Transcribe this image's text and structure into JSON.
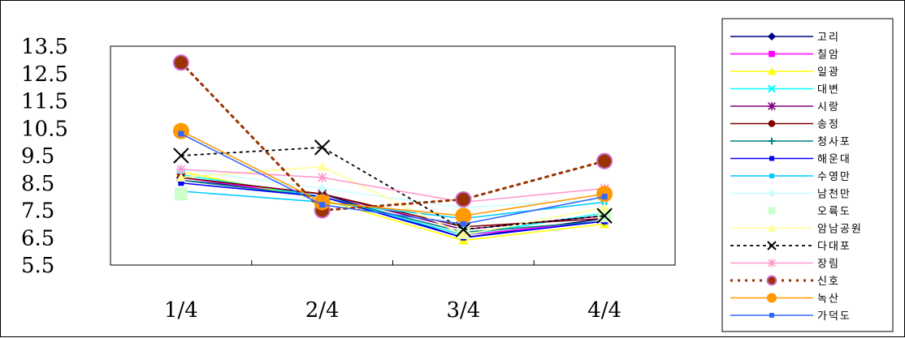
{
  "chart_data": {
    "type": "line",
    "title": "",
    "xlabel": "",
    "ylabel": "",
    "categories": [
      "1/4",
      "2/4",
      "3/4",
      "4/4"
    ],
    "ylim": [
      5.5,
      13.5
    ],
    "y_ticks": [
      "13.5",
      "12.5",
      "11.5",
      "10.5",
      "9.5",
      "8.5",
      "7.5",
      "6.5",
      "5.5"
    ],
    "grid": false,
    "legend_position": "right",
    "series": [
      {
        "name": "고리",
        "values": [
          8.6,
          8.1,
          6.5,
          7.2
        ],
        "color": "#000080",
        "marker": "diamond",
        "dash": "solid"
      },
      {
        "name": "칠암",
        "values": [
          8.7,
          8.0,
          6.6,
          7.1
        ],
        "color": "#ff00ff",
        "marker": "square",
        "dash": "solid"
      },
      {
        "name": "일광",
        "values": [
          8.9,
          7.9,
          6.4,
          7.0
        ],
        "color": "#ffff00",
        "marker": "triangle",
        "dash": "solid"
      },
      {
        "name": "대변",
        "values": [
          8.8,
          8.0,
          6.6,
          7.4
        ],
        "color": "#00ffff",
        "marker": "x",
        "dash": "solid"
      },
      {
        "name": "시랑",
        "values": [
          8.7,
          8.1,
          6.8,
          7.3
        ],
        "color": "#800080",
        "marker": "star",
        "dash": "solid"
      },
      {
        "name": "송정",
        "values": [
          8.7,
          8.1,
          6.9,
          7.2
        ],
        "color": "#800000",
        "marker": "circle",
        "dash": "solid"
      },
      {
        "name": "청사포",
        "values": [
          8.6,
          8.0,
          6.7,
          7.1
        ],
        "color": "#008080",
        "marker": "plus",
        "dash": "solid"
      },
      {
        "name": "해운대",
        "values": [
          8.5,
          8.0,
          6.5,
          7.1
        ],
        "color": "#0000ff",
        "marker": "smallsquare",
        "dash": "solid"
      },
      {
        "name": "수영만",
        "values": [
          8.2,
          7.8,
          7.2,
          7.8
        ],
        "color": "#00ccff",
        "marker": "smallsquare",
        "dash": "solid"
      },
      {
        "name": "남천만",
        "values": [
          9.0,
          8.3,
          7.6,
          7.9
        ],
        "color": "#ccffff",
        "marker": "diamond",
        "dash": "solid"
      },
      {
        "name": "오륙도",
        "values": [
          8.1,
          7.8,
          6.7,
          7.3
        ],
        "color": "#ccffcc",
        "marker": "bigsquare",
        "dash": "none"
      },
      {
        "name": "암남공원",
        "values": [
          8.7,
          9.1,
          6.6,
          7.6
        ],
        "color": "#ffff99",
        "marker": "triangle",
        "dash": "solid"
      },
      {
        "name": "다대포",
        "values": [
          9.5,
          9.8,
          6.8,
          7.3
        ],
        "color": "#000000",
        "marker": "bigx",
        "dash": "dash"
      },
      {
        "name": "장림",
        "values": [
          9.0,
          8.7,
          7.8,
          8.3
        ],
        "color": "#ff99cc",
        "marker": "star",
        "dash": "solid"
      },
      {
        "name": "신호",
        "values": [
          12.9,
          7.5,
          7.9,
          9.3
        ],
        "color": "#993300",
        "marker": "bigcircle",
        "dash": "dot"
      },
      {
        "name": "녹산",
        "values": [
          10.4,
          7.8,
          7.3,
          8.1
        ],
        "color": "#ff9900",
        "marker": "orangecircle",
        "dash": "solid"
      },
      {
        "name": "가덕도",
        "values": [
          10.3,
          7.7,
          7.0,
          8.0
        ],
        "color": "#3366ff",
        "marker": "smallsquare",
        "dash": "solid"
      }
    ]
  }
}
